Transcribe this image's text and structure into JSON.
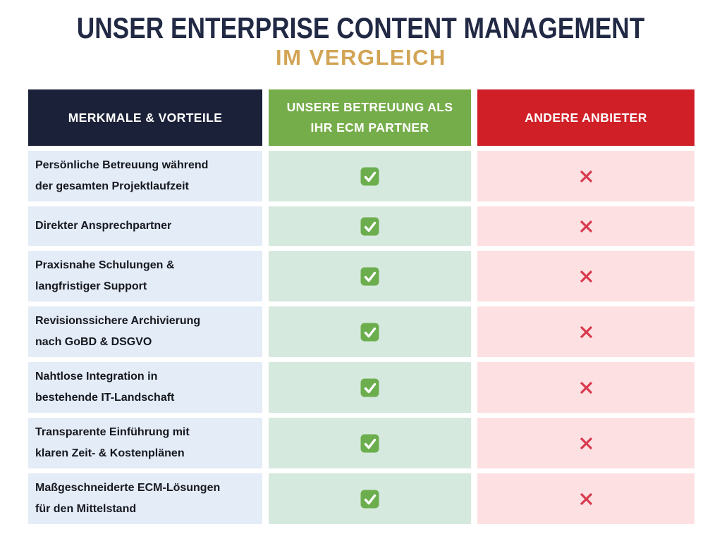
{
  "title": {
    "line1": "UNSER ENTERPRISE CONTENT MANAGEMENT",
    "line2": "IM VERGLEICH"
  },
  "colors": {
    "title_navy": "#212944",
    "accent_gold": "#d2a455",
    "header_navy": "#1b2138",
    "header_green": "#76ad4b",
    "header_red": "#d01f27",
    "row_blue": "#e4ecf7",
    "row_green": "#d6e9de",
    "row_pink": "#fde0e2",
    "check_green": "#6cae4e",
    "cross_red": "#d93a4e"
  },
  "table": {
    "headers": [
      {
        "id": "features",
        "lines": [
          "MERKMALE & VORTEILE"
        ],
        "bg": "#1b2138"
      },
      {
        "id": "us",
        "lines": [
          "UNSERE BETREUUNG ALS",
          "IHR ECM PARTNER"
        ],
        "bg": "#76ad4b"
      },
      {
        "id": "others",
        "lines": [
          "ANDERE ANBIETER"
        ],
        "bg": "#d01f27"
      }
    ],
    "rows": [
      {
        "feature_lines": [
          "Persönliche Betreuung während",
          "der gesamten Projektlaufzeit"
        ],
        "us": "check",
        "others": "cross"
      },
      {
        "feature_lines": [
          "Direkter Ansprechpartner"
        ],
        "us": "check",
        "others": "cross"
      },
      {
        "feature_lines": [
          "Praxisnahe Schulungen &",
          "langfristiger Support"
        ],
        "us": "check",
        "others": "cross"
      },
      {
        "feature_lines": [
          "Revisionssichere Archivierung",
          "nach GoBD & DSGVO"
        ],
        "us": "check",
        "others": "cross"
      },
      {
        "feature_lines": [
          "Nahtlose Integration in",
          "bestehende IT-Landschaft"
        ],
        "us": "check",
        "others": "cross"
      },
      {
        "feature_lines": [
          "Transparente Einführung mit",
          "klaren Zeit- & Kostenplänen"
        ],
        "us": "check",
        "others": "cross"
      },
      {
        "feature_lines": [
          "Maßgeschneiderte ECM-Lösungen",
          "für den Mittelstand"
        ],
        "us": "check",
        "others": "cross"
      }
    ]
  },
  "chart_data": {
    "type": "table",
    "title": "UNSER ENTERPRISE CONTENT MANAGEMENT IM VERGLEICH",
    "columns": [
      "MERKMALE & VORTEILE",
      "UNSERE BETREUUNG ALS IHR ECM PARTNER",
      "ANDERE ANBIETER"
    ],
    "rows": [
      [
        "Persönliche Betreuung während der gesamten Projektlaufzeit",
        "check",
        "cross"
      ],
      [
        "Direkter Ansprechpartner",
        "check",
        "cross"
      ],
      [
        "Praxisnahe Schulungen & langfristiger Support",
        "check",
        "cross"
      ],
      [
        "Revisionssichere Archivierung nach GoBD & DSGVO",
        "check",
        "cross"
      ],
      [
        "Nahtlose Integration in bestehende IT-Landschaft",
        "check",
        "cross"
      ],
      [
        "Transparente Einführung mit klaren Zeit- & Kostenplänen",
        "check",
        "cross"
      ],
      [
        "Maßgeschneiderte ECM-Lösungen für den Mittelstand",
        "check",
        "cross"
      ]
    ],
    "legend": {
      "check": "included / provided",
      "cross": "not provided"
    }
  }
}
